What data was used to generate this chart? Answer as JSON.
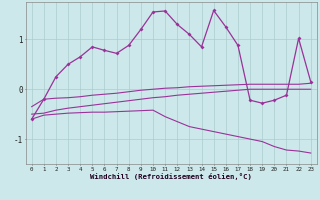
{
  "xlabel": "Windchill (Refroidissement éolien,°C)",
  "background_color": "#cce8ea",
  "grid_color": "#aacccc",
  "line_color": "#993399",
  "x_hours": [
    0,
    1,
    2,
    3,
    4,
    5,
    6,
    7,
    8,
    9,
    10,
    11,
    12,
    13,
    14,
    15,
    16,
    17,
    18,
    19,
    20,
    21,
    22,
    23
  ],
  "curve_main": [
    -0.6,
    -0.2,
    0.25,
    0.5,
    0.65,
    0.85,
    0.78,
    0.72,
    0.88,
    1.2,
    1.55,
    1.57,
    1.3,
    1.1,
    0.85,
    1.58,
    1.25,
    0.88,
    -0.22,
    -0.28,
    -0.22,
    -0.12,
    1.02,
    0.15
  ],
  "curve_upper": [
    -0.35,
    -0.2,
    -0.18,
    -0.17,
    -0.15,
    -0.12,
    -0.1,
    -0.08,
    -0.05,
    -0.02,
    0.0,
    0.02,
    0.03,
    0.05,
    0.06,
    0.07,
    0.08,
    0.09,
    0.1,
    0.1,
    0.1,
    0.1,
    0.1,
    0.12
  ],
  "curve_mid": [
    -0.5,
    -0.48,
    -0.42,
    -0.38,
    -0.35,
    -0.32,
    -0.29,
    -0.26,
    -0.23,
    -0.2,
    -0.17,
    -0.15,
    -0.12,
    -0.1,
    -0.08,
    -0.06,
    -0.04,
    -0.02,
    0.0,
    0.0,
    0.0,
    0.0,
    0.0,
    0.0
  ],
  "curve_bottom": [
    -0.6,
    -0.52,
    -0.5,
    -0.48,
    -0.47,
    -0.46,
    -0.46,
    -0.45,
    -0.44,
    -0.43,
    -0.42,
    -0.55,
    -0.65,
    -0.75,
    -0.8,
    -0.85,
    -0.9,
    -0.95,
    -1.0,
    -1.05,
    -1.15,
    -1.22,
    -1.24,
    -1.28
  ],
  "ylim": [
    -1.5,
    1.75
  ],
  "yticks": [
    -1,
    0,
    1
  ],
  "xlim": [
    -0.5,
    23.5
  ]
}
